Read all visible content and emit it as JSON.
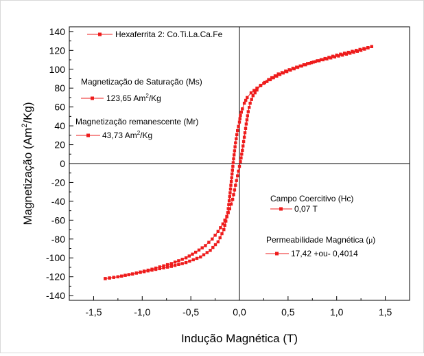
{
  "chart_data": {
    "type": "scatter",
    "xlabel": "Indução Magnética (T)",
    "ylabel_main": "Magnetização (Am",
    "ylabel_sup": "2",
    "ylabel_end": "/Kg)",
    "xlim": [
      -1.75,
      1.75
    ],
    "ylim": [
      -145,
      145
    ],
    "x_ticks": [
      -1.5,
      -1.0,
      -0.5,
      0.0,
      0.5,
      1.0,
      1.5
    ],
    "x_tick_labels": [
      "-1,5",
      "-1,0",
      "-0,5",
      "0,0",
      "0,5",
      "1,0",
      "1,5"
    ],
    "y_ticks": [
      -140,
      -120,
      -100,
      -80,
      -60,
      -40,
      -20,
      0,
      20,
      40,
      60,
      80,
      100,
      120,
      140
    ],
    "y_tick_labels": [
      "-140",
      "-120",
      "-100",
      "-80",
      "-60",
      "-40",
      "-20",
      "0",
      "20",
      "40",
      "60",
      "80",
      "100",
      "120",
      "140"
    ],
    "grid": false,
    "zero_axes": true,
    "series_color": "#ee1c1c",
    "series": [
      {
        "name": "Hexaferrita 2: Co.Ti.La.Ca.Fe",
        "branch": "descending",
        "x": [
          1.36,
          1.2,
          1.0,
          0.8,
          0.6,
          0.45,
          0.35,
          0.25,
          0.18,
          0.12,
          0.08,
          0.05,
          0.03,
          0.01,
          0.0,
          -0.02,
          -0.04,
          -0.06,
          -0.08,
          -0.1,
          -0.12,
          -0.16,
          -0.22,
          -0.3,
          -0.4,
          -0.55,
          -0.7,
          -0.9,
          -1.1,
          -1.25,
          -1.38
        ],
        "y": [
          124,
          120,
          115,
          109,
          102,
          96,
          91,
          85,
          80,
          75,
          70,
          64,
          58,
          51,
          44,
          35,
          22,
          5,
          -15,
          -35,
          -52,
          -70,
          -83,
          -92,
          -99,
          -105,
          -109,
          -113,
          -117,
          -120,
          -122
        ]
      },
      {
        "name": "",
        "branch": "ascending",
        "x": [
          -1.38,
          -1.25,
          -1.1,
          -0.9,
          -0.7,
          -0.55,
          -0.45,
          -0.35,
          -0.28,
          -0.22,
          -0.17,
          -0.13,
          -0.1,
          -0.07,
          -0.05,
          -0.03,
          -0.01,
          0.01,
          0.03,
          0.05,
          0.07,
          0.09,
          0.11,
          0.14,
          0.18,
          0.22,
          0.3,
          0.4,
          0.55,
          0.7,
          0.9,
          1.1,
          1.25,
          1.36
        ],
        "y": [
          -122,
          -120,
          -117,
          -112,
          -106,
          -100,
          -94,
          -87,
          -80,
          -72,
          -64,
          -56,
          -48,
          -38,
          -28,
          -18,
          -8,
          2,
          14,
          28,
          42,
          55,
          64,
          72,
          78,
          83,
          89,
          95,
          101,
          106,
          111,
          116,
          120,
          124
        ]
      }
    ],
    "legends": [
      {
        "label": "Hexaferrita 2: Co.Ti.La.Ca.Fe",
        "lines": []
      },
      {
        "label": "Magnetização de Saturação (Ms)",
        "lines": [
          "123,65 Am",
          "2",
          "/Kg"
        ]
      },
      {
        "label": "Magnetização remanescente (Mr)",
        "lines": [
          "43,73 Am",
          "2",
          "/Kg"
        ]
      },
      {
        "label": "Campo Coercitivo (Hc)",
        "lines": [
          "0,07 T"
        ]
      },
      {
        "label": "Permeabilidade Magnética (",
        "mu": "μ",
        "mu_close": ")",
        "lines": [
          "17,42 +ou- 0,4014"
        ]
      }
    ]
  }
}
